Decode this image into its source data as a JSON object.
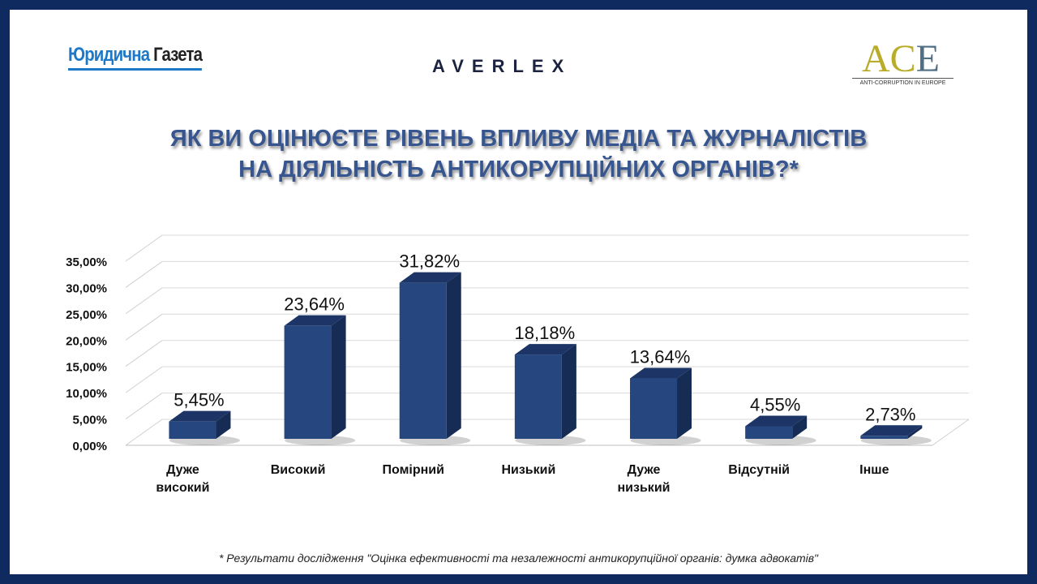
{
  "header": {
    "logo_left_a": "Юридична",
    "logo_left_b": "Газета",
    "logo_center": "AVERLEX",
    "logo_right_a": "AC",
    "logo_right_b": "E",
    "logo_right_sub": "ANTI-CORRUPTION IN EUROPE"
  },
  "title_line1": "ЯК ВИ ОЦІНЮЄТЕ РІВЕНЬ ВПЛИВУ МЕДІА ТА ЖУРНАЛІСТІВ",
  "title_line2": "НА ДІЯЛЬНІСТЬ АНТИКОРУПЦІЙНИХ ОРГАНІВ?*",
  "footnote": "* Результати дослідження \"Оцінка ефективності та незалежності антикорупційної органів: думка адвокатів\"",
  "colors": {
    "bar": "#25467f",
    "bar_top": "#1c3566",
    "bar_side": "#172c55",
    "frame": "#0e2a5f"
  },
  "chart_data": {
    "type": "bar",
    "title": "ЯК ВИ ОЦІНЮЄТЕ РІВЕНЬ ВПЛИВУ МЕДІА ТА ЖУРНАЛІСТІВ НА ДІЯЛЬНІСТЬ АНТИКОРУПЦІЙНИХ ОРГАНІВ?*",
    "categories": [
      [
        "Дуже",
        "високий"
      ],
      [
        "Високий"
      ],
      [
        "Помірний"
      ],
      [
        "Низький"
      ],
      [
        "Дуже",
        "низький"
      ],
      [
        "Відсутній"
      ],
      [
        "Інше"
      ]
    ],
    "values": [
      5.45,
      23.64,
      31.82,
      18.18,
      13.64,
      4.55,
      2.73
    ],
    "data_labels": [
      "5,45%",
      "23,64%",
      "31,82%",
      "18,18%",
      "13,64%",
      "4,55%",
      "2,73%"
    ],
    "yticks": [
      "0,00%",
      "5,00%",
      "10,00%",
      "15,00%",
      "20,00%",
      "25,00%",
      "30,00%",
      "35,00%"
    ],
    "ylim": [
      0,
      35
    ],
    "grid": true,
    "xlabel": "",
    "ylabel": ""
  }
}
